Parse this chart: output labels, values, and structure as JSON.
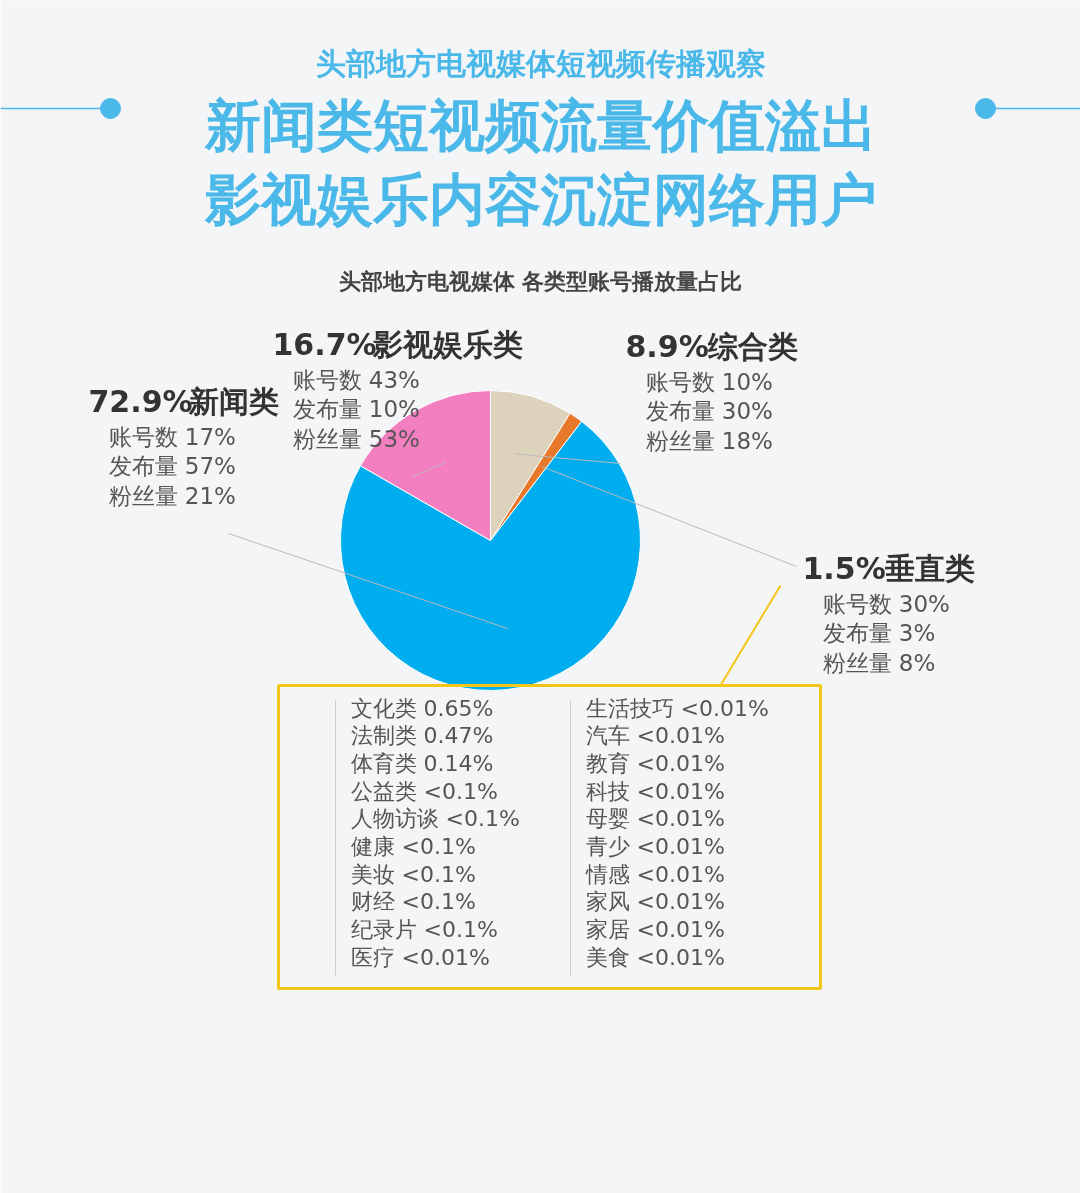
{
  "chart_data": {
    "type": "pie",
    "subtitle": "头部地方电视媒体短视频传播观察",
    "title": "新闻类短视频流量价值溢出影视娱乐内容沉淀网络用户",
    "categories": [
      "综合类",
      "垂直类",
      "新闻类",
      "影视娱乐类"
    ],
    "values": [
      8.9,
      1.5,
      72.9,
      16.7
    ],
    "colors": [
      "#ddd3bd",
      "#e8782a",
      "#00aeef",
      "#f37ec0"
    ],
    "value_labels": [
      "8.9%",
      "1.5%",
      "72.9%",
      "16.7%"
    ],
    "annotations": [
      "头部地方电视媒体 各类型账号播放量占比",
      "账号数  10%\n发布量  30%\n粉丝量  18%",
      "账号数  30%\n发布量  3%\n粉丝量  8%",
      "账号数 17%\n发布量 57%\n粉丝量 21%",
      "账号数  43%\n发布量  10%\n粉丝量  53%",
      "文化类     0.65%",
      "法制类     0.47%",
      "体育类     0.14%",
      "公益类     <0.1%",
      "人物访谈  <0.1%",
      "健康         <0.1%",
      "美妆         <0.1%",
      "财经         <0.1%",
      "纪录片      <0.1%",
      "医疗        <0.01%",
      "生活技巧    <0.01%",
      "汽车      <0.01%",
      "教育      <0.01%",
      "科技      <0.01%",
      "母婴      <0.01%",
      "青少      <0.01%",
      "情感      <0.01%",
      "家风      <0.01%",
      "家居      <0.01%",
      "美食    <0.01%"
    ]
  }
}
